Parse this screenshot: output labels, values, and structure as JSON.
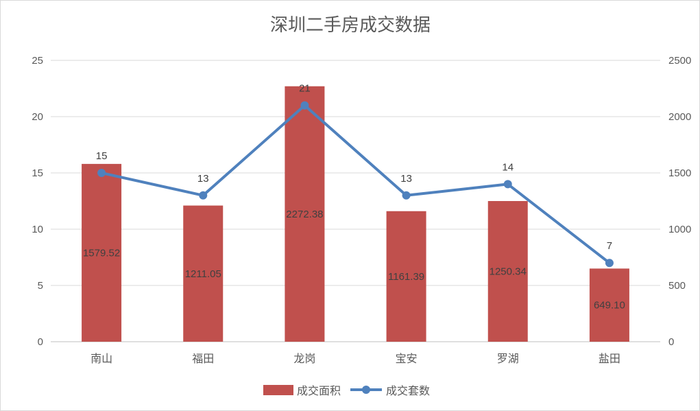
{
  "chart_data": {
    "type": "bar",
    "title": "深圳二手房成交数据",
    "categories": [
      "南山",
      "福田",
      "龙岗",
      "宝安",
      "罗湖",
      "盐田"
    ],
    "series": [
      {
        "name": "成交面积",
        "kind": "bar",
        "axis": "left",
        "color": "#c0504d",
        "values": [
          15.8,
          12.1,
          22.7,
          11.6,
          12.5,
          6.5
        ],
        "labels": [
          "1579.52",
          "1211.05",
          "2272.38",
          "1161.39",
          "1250.34",
          "649.10"
        ]
      },
      {
        "name": "成交套数",
        "kind": "line",
        "axis": "right",
        "color": "#4f81bd",
        "values": [
          1500,
          1300,
          2100,
          1300,
          1400,
          700
        ],
        "labels": [
          "15",
          "13",
          "21",
          "13",
          "14",
          "7"
        ]
      }
    ],
    "y_left": {
      "min": 0,
      "max": 25,
      "ticks": [
        0,
        5,
        10,
        15,
        20,
        25
      ]
    },
    "y_right": {
      "min": 0,
      "max": 2500,
      "ticks": [
        0,
        500,
        1000,
        1500,
        2000,
        2500
      ]
    },
    "grid": true,
    "legend_position": "bottom"
  }
}
